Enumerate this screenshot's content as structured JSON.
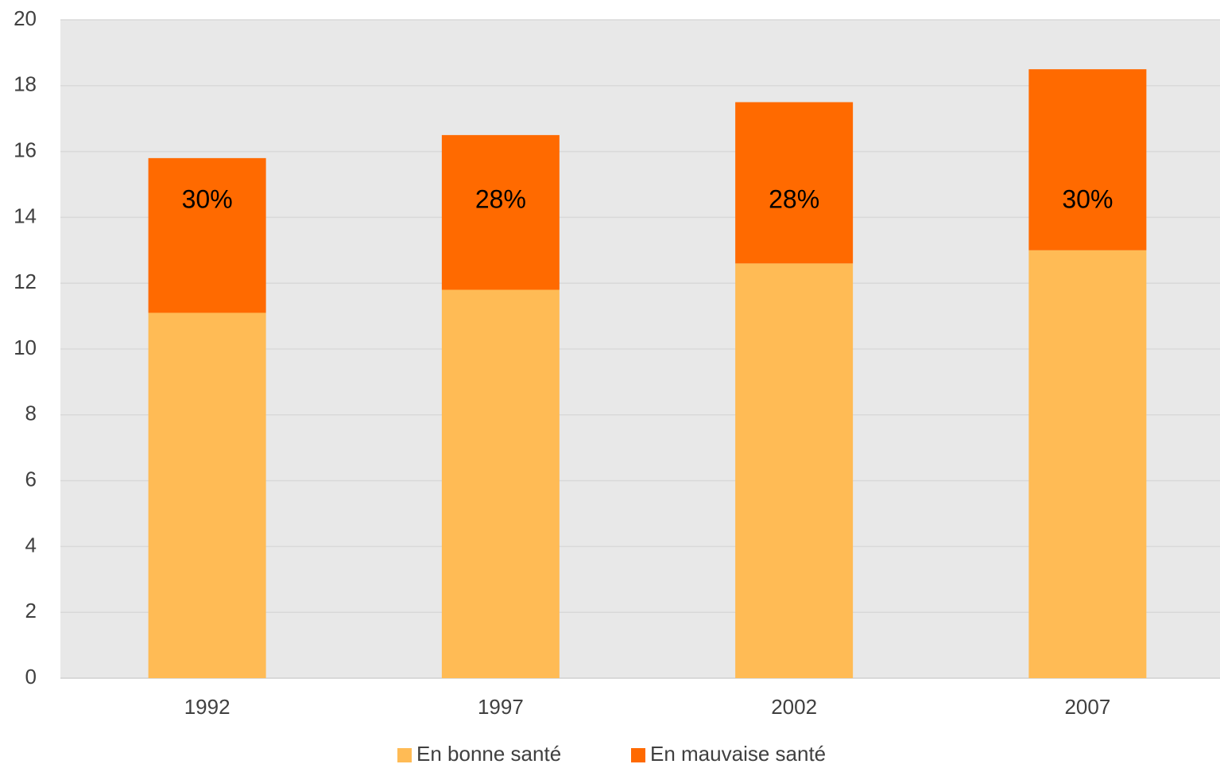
{
  "chart_data": {
    "type": "stacked_bar",
    "categories": [
      "1992",
      "1997",
      "2002",
      "2007"
    ],
    "series": [
      {
        "name": "En bonne santé",
        "color": "#ffbb55",
        "values": [
          11.1,
          11.8,
          12.6,
          13.0
        ]
      },
      {
        "name": "En mauvaise santé",
        "color": "#ff6a00",
        "values": [
          4.7,
          4.7,
          4.9,
          5.5
        ],
        "annotations": [
          "30%",
          "28%",
          "28%",
          "30%"
        ]
      }
    ],
    "ylim": [
      0,
      20
    ],
    "yticks": [
      0,
      2,
      4,
      6,
      8,
      10,
      12,
      14,
      16,
      18,
      20
    ],
    "grid": true,
    "legend": "bottom"
  }
}
